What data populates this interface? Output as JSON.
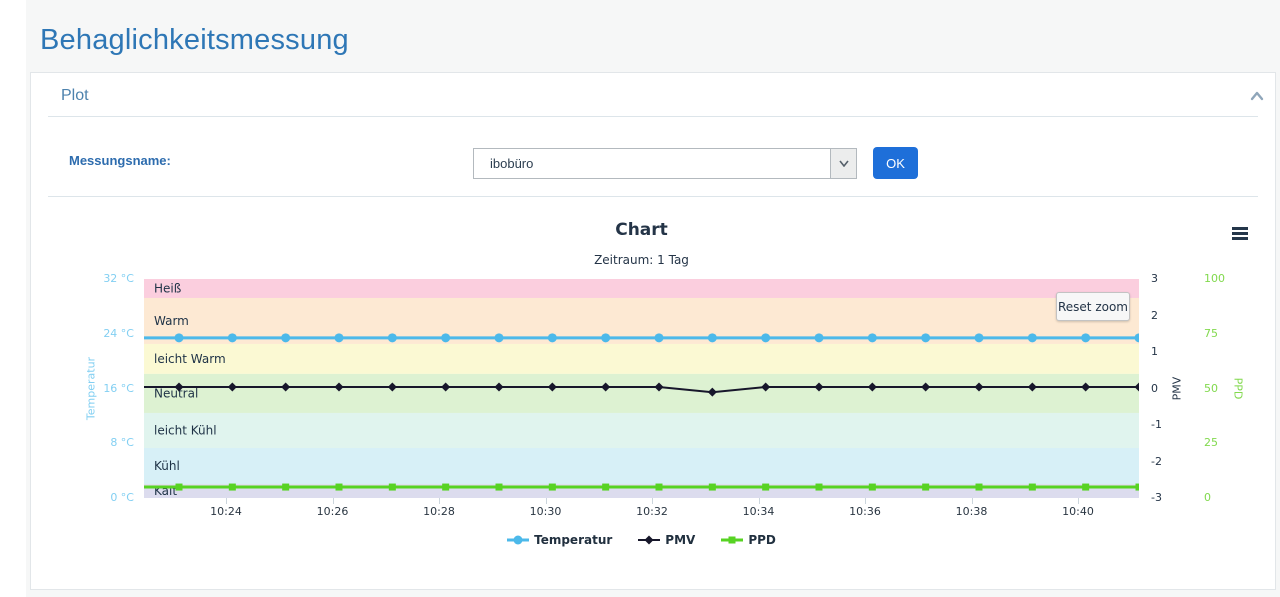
{
  "page": {
    "title": "Behaglichkeitsmessung"
  },
  "panel": {
    "header": "Plot",
    "collapse_icon": "chevron-up-icon"
  },
  "form": {
    "label": "Messungsname:",
    "select_value": "ibobüro",
    "ok_label": "OK"
  },
  "chart_data": {
    "type": "line",
    "title": "Chart",
    "subtitle": "Zeitraum: 1 Tag",
    "reset_zoom_label": "Reset zoom",
    "menu_icon": "hamburger-icon",
    "legend_position": "bottom-center",
    "x_times": [
      "10:23",
      "10:24",
      "10:25",
      "10:26",
      "10:27",
      "10:28",
      "10:29",
      "10:30",
      "10:31",
      "10:32",
      "10:33",
      "10:34",
      "10:35",
      "10:36",
      "10:37",
      "10:38",
      "10:39",
      "10:40",
      "10:41"
    ],
    "x_tick_labels": [
      "10:24",
      "10:26",
      "10:28",
      "10:30",
      "10:32",
      "10:34",
      "10:36",
      "10:38",
      "10:40"
    ],
    "axes": {
      "temperatur": {
        "title": "Temperatur",
        "min": 0,
        "max": 32,
        "tick_labels": [
          "32 °C",
          "24 °C",
          "16 °C",
          "8 °C",
          "0 °C"
        ],
        "color": "#82cff2",
        "side": "left"
      },
      "pmv": {
        "title": "PMV",
        "min": -3,
        "max": 3,
        "tick_labels": [
          "3",
          "2",
          "1",
          "0",
          "-1",
          "-2",
          "-3"
        ],
        "color": "#243447",
        "side": "right"
      },
      "ppd": {
        "title": "PPD",
        "min": 0,
        "max": 100,
        "tick_labels": [
          "100",
          "75",
          "50",
          "25",
          "0"
        ],
        "color": "#82d94e",
        "side": "right-outer"
      }
    },
    "plot_bands": [
      {
        "label": "Heiß",
        "from": 3.0,
        "to": 2.48,
        "color": "#fbcede"
      },
      {
        "label": "Warm",
        "from": 2.48,
        "to": 1.22,
        "color": "#fde9d3"
      },
      {
        "label": "leicht Warm",
        "from": 1.22,
        "to": 0.4,
        "color": "#fbf9d3"
      },
      {
        "label": "Neutral",
        "from": 0.4,
        "to": -0.67,
        "color": "#ddf2d2"
      },
      {
        "label": "leicht Kühl",
        "from": -0.67,
        "to": -1.63,
        "color": "#e0f4ee"
      },
      {
        "label": "Kühl",
        "from": -1.63,
        "to": -2.62,
        "color": "#d7f0f7"
      },
      {
        "label": "Kalt",
        "from": -2.62,
        "to": -3.0,
        "color": "#dcdcee"
      }
    ],
    "series": [
      {
        "name": "Temperatur",
        "axis": "temperatur",
        "color": "#4cb9ea",
        "marker": "circle",
        "values": [
          23.4,
          23.4,
          23.4,
          23.4,
          23.4,
          23.4,
          23.4,
          23.4,
          23.4,
          23.4,
          23.4,
          23.4,
          23.4,
          23.4,
          23.4,
          23.4,
          23.4,
          23.4,
          23.4
        ]
      },
      {
        "name": "PMV",
        "axis": "pmv",
        "color": "#17172b",
        "marker": "diamond",
        "values": [
          0.04,
          0.04,
          0.04,
          0.04,
          0.04,
          0.04,
          0.04,
          0.04,
          0.04,
          0.04,
          -0.1,
          0.04,
          0.04,
          0.04,
          0.04,
          0.04,
          0.04,
          0.04,
          0.04
        ]
      },
      {
        "name": "PPD",
        "axis": "ppd",
        "color": "#57d323",
        "marker": "square",
        "values": [
          5,
          5,
          5,
          5,
          5,
          5,
          5,
          5,
          5,
          5,
          5,
          5,
          5,
          5,
          5,
          5,
          5,
          5,
          5
        ]
      }
    ]
  }
}
